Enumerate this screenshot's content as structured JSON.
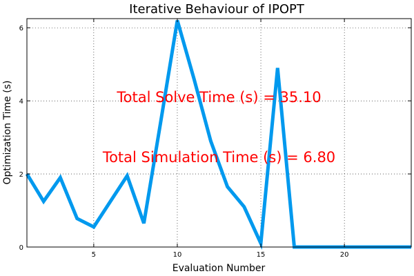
{
  "chart_data": {
    "type": "line",
    "title": "Iterative Behaviour of IPOPT",
    "xlabel": "Evaluation Number",
    "ylabel": "Optimization Time (s)",
    "xlim": [
      1,
      24
    ],
    "ylim": [
      0,
      6.25
    ],
    "xticks": [
      5,
      10,
      15,
      20
    ],
    "yticks": [
      0,
      2,
      4,
      6
    ],
    "grid": true,
    "series": [
      {
        "color": "#0099ee",
        "x": [
          1,
          2,
          3,
          4,
          5,
          6,
          7,
          8,
          9,
          10,
          11,
          12,
          13,
          14,
          15,
          16,
          17,
          18,
          19,
          20,
          21,
          22,
          23,
          24
        ],
        "values": [
          2.0,
          1.25,
          1.9,
          0.78,
          0.55,
          1.25,
          1.95,
          0.65,
          3.4,
          6.2,
          4.6,
          2.9,
          1.65,
          1.1,
          0.1,
          4.9,
          0.0,
          0.0,
          0.0,
          0.0,
          0.0,
          0.0,
          0.0,
          0.0
        ]
      }
    ],
    "annotations": [
      {
        "text": "Total Solve Time (s) = 35.10",
        "x": 12.5,
        "y": 4.1,
        "color": "#ff0000"
      },
      {
        "text": "Total Simulation Time (s) = 6.80",
        "x": 12.5,
        "y": 2.45,
        "color": "#ff0000"
      }
    ]
  }
}
